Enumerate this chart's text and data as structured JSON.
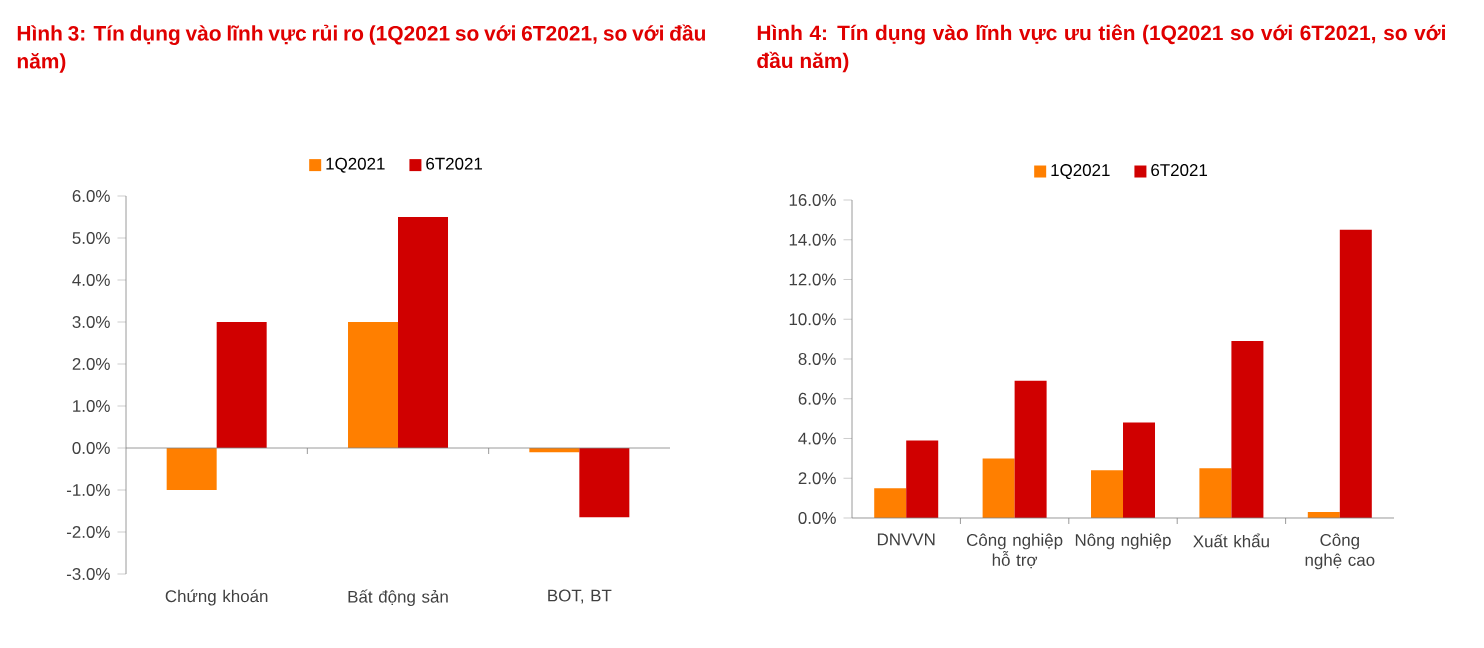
{
  "chart_data": [
    {
      "type": "bar",
      "title": "Hình 3: Tín dụng vào lĩnh vực rủi ro (1Q2021 so với 6T2021, so với đầu năm)",
      "categories": [
        "Chứng khoán",
        "Bất động sản",
        "BOT, BT"
      ],
      "series": [
        {
          "name": "1Q2021",
          "color": "#ff7f00",
          "values": [
            -1.0,
            3.0,
            -0.1
          ]
        },
        {
          "name": "6T2021",
          "color": "#d00000",
          "values": [
            3.0,
            5.5,
            -1.65
          ]
        }
      ],
      "ylim": [
        -3,
        6
      ],
      "yticks": [
        {
          "value": -3,
          "label": "-3.0%"
        },
        {
          "value": -2,
          "label": "-2.0%"
        },
        {
          "value": -1,
          "label": "-1.0%"
        },
        {
          "value": 0,
          "label": "0.0%"
        },
        {
          "value": 1,
          "label": "1.0%"
        },
        {
          "value": 2,
          "label": "2.0%"
        },
        {
          "value": 3,
          "label": "3.0%"
        },
        {
          "value": 4,
          "label": "4.0%"
        },
        {
          "value": 5,
          "label": "5.0%"
        },
        {
          "value": 6,
          "label": "6.0%"
        }
      ],
      "legend": "top"
    },
    {
      "type": "bar",
      "title": "Hình 4: Tín dụng vào lĩnh vực ưu tiên (1Q2021 so với 6T2021, so với đầu năm)",
      "categories": [
        "DNVVN",
        "Công nghiệp hỗ trợ",
        "Nông nghiệp",
        "Xuất khẩu",
        "Công nghệ cao"
      ],
      "series": [
        {
          "name": "1Q2021",
          "color": "#ff7f00",
          "values": [
            1.5,
            3.0,
            2.4,
            2.5,
            0.3
          ]
        },
        {
          "name": "6T2021",
          "color": "#d00000",
          "values": [
            3.9,
            6.9,
            4.8,
            8.9,
            14.5
          ]
        }
      ],
      "ylim": [
        0,
        16
      ],
      "yticks": [
        {
          "value": 0,
          "label": "0.0%"
        },
        {
          "value": 2,
          "label": "2.0%"
        },
        {
          "value": 4,
          "label": "4.0%"
        },
        {
          "value": 6,
          "label": "6.0%"
        },
        {
          "value": 8,
          "label": "8.0%"
        },
        {
          "value": 10,
          "label": "10.0%"
        },
        {
          "value": 12,
          "label": "12.0%"
        },
        {
          "value": 14,
          "label": "14.0%"
        },
        {
          "value": 16,
          "label": "16.0%"
        }
      ],
      "legend": "top"
    }
  ]
}
